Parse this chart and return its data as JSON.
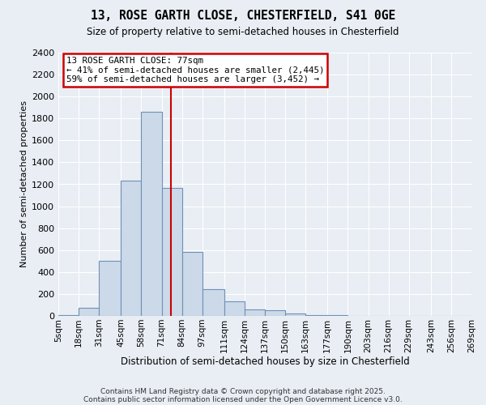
{
  "title": "13, ROSE GARTH CLOSE, CHESTERFIELD, S41 0GE",
  "subtitle": "Size of property relative to semi-detached houses in Chesterfield",
  "xlabel": "Distribution of semi-detached houses by size in Chesterfield",
  "ylabel": "Number of semi-detached properties",
  "annotation_title": "13 ROSE GARTH CLOSE: 77sqm",
  "annotation_line1": "← 41% of semi-detached houses are smaller (2,445)",
  "annotation_line2": "59% of semi-detached houses are larger (3,452) →",
  "bar_color": "#ccd9e8",
  "bar_edge_color": "#7090b8",
  "property_size": 77,
  "bin_edges": [
    5,
    18,
    31,
    45,
    58,
    71,
    84,
    97,
    111,
    124,
    137,
    150,
    163,
    177,
    190,
    203,
    216,
    229,
    243,
    256,
    269
  ],
  "bin_labels": [
    "5sqm",
    "18sqm",
    "31sqm",
    "45sqm",
    "58sqm",
    "71sqm",
    "84sqm",
    "97sqm",
    "111sqm",
    "124sqm",
    "137sqm",
    "150sqm",
    "163sqm",
    "177sqm",
    "190sqm",
    "203sqm",
    "216sqm",
    "229sqm",
    "243sqm",
    "256sqm",
    "269sqm"
  ],
  "counts": [
    10,
    75,
    500,
    1230,
    1860,
    1170,
    580,
    245,
    130,
    60,
    50,
    25,
    10,
    8,
    0,
    0,
    0,
    0,
    0,
    0
  ],
  "ylim": [
    0,
    2400
  ],
  "yticks": [
    0,
    200,
    400,
    600,
    800,
    1000,
    1200,
    1400,
    1600,
    1800,
    2000,
    2200,
    2400
  ],
  "footer_line1": "Contains HM Land Registry data © Crown copyright and database right 2025.",
  "footer_line2": "Contains public sector information licensed under the Open Government Licence v3.0.",
  "background_color": "#e8eef4",
  "plot_bg_color": "#e8eef4",
  "grid_color": "#ffffff",
  "red_line_color": "#cc0000",
  "annotation_bg": "#ffffff",
  "annotation_border": "#cc0000"
}
